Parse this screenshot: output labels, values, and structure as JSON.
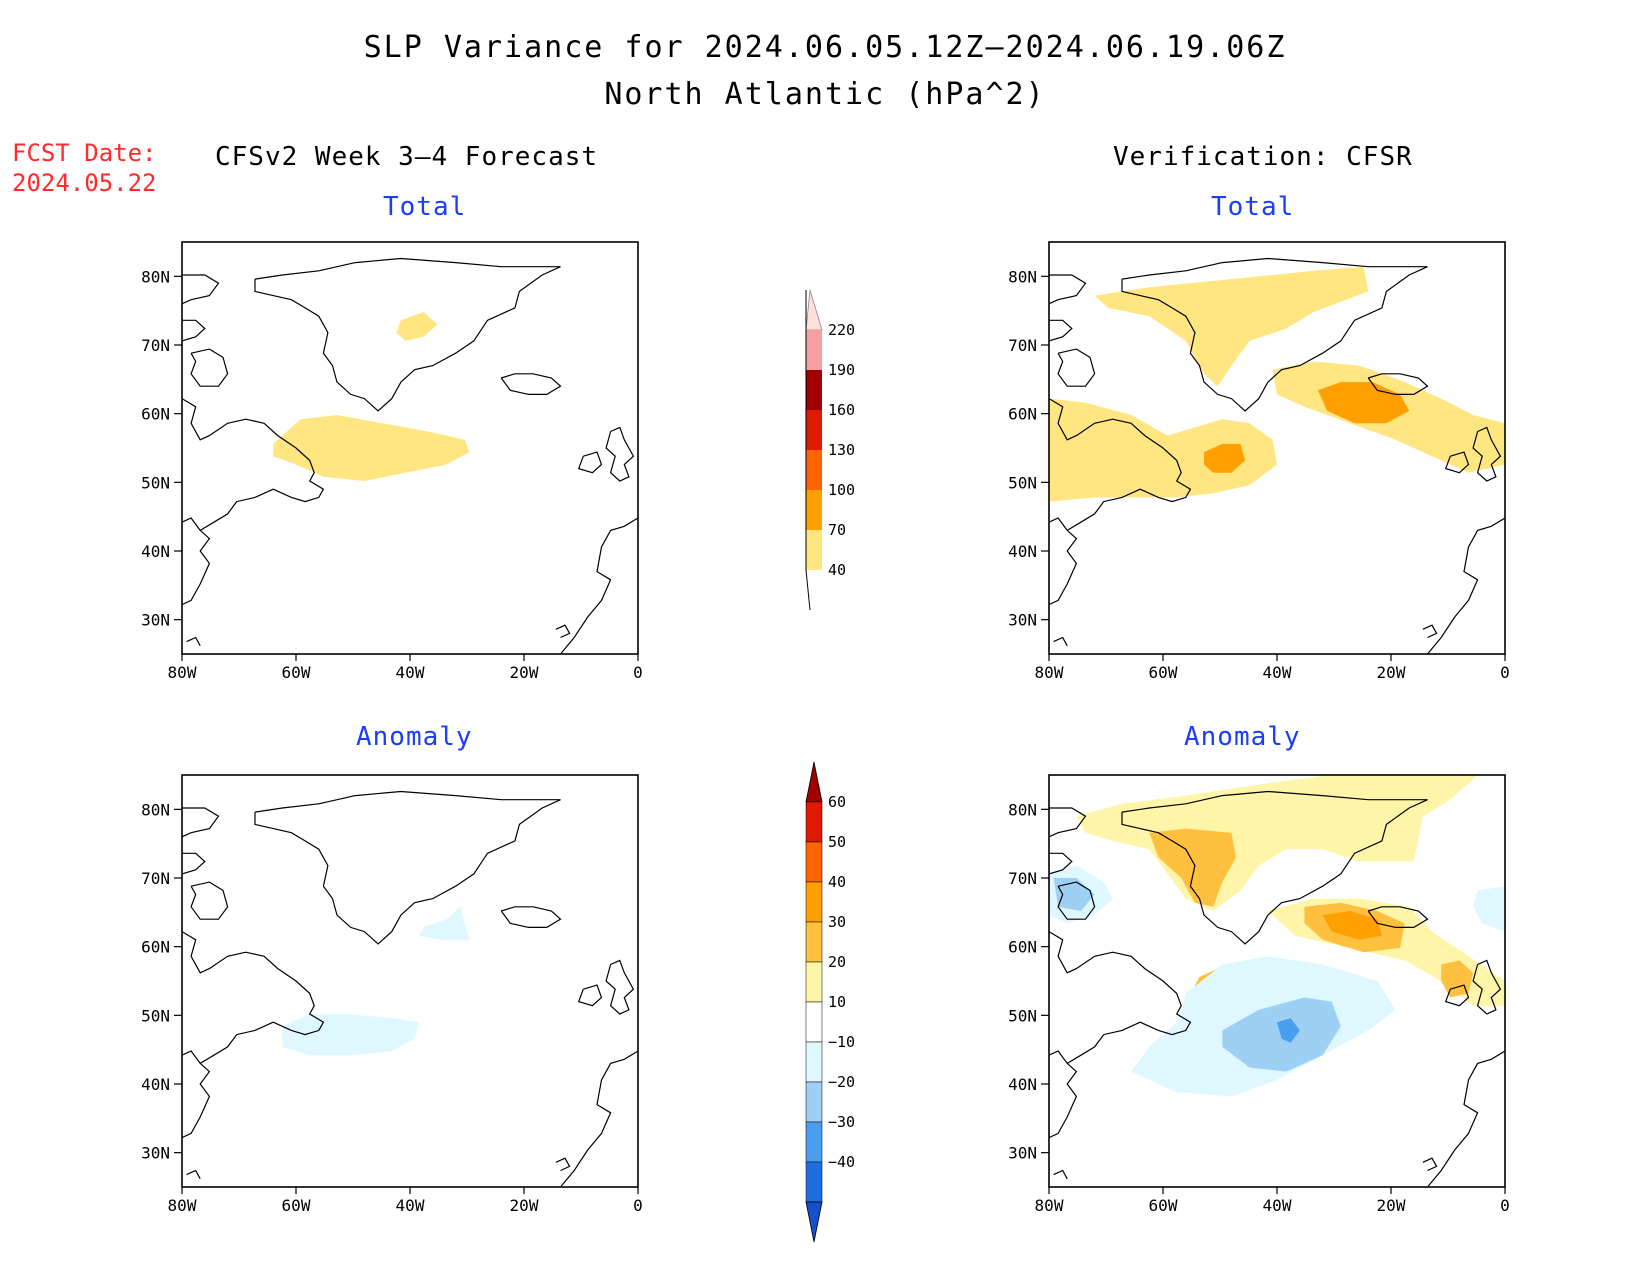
{
  "header": {
    "title_line1": "SLP Variance for 2024.06.05.12Z—2024.06.19.06Z",
    "title_line2": "North Atlantic (hPa^2)"
  },
  "forecast_date": {
    "label": "FCST Date:",
    "value": "2024.05.22"
  },
  "columns": {
    "left_title": "CFSv2 Week 3—4 Forecast",
    "right_title": "Verification: CFSR"
  },
  "panels": {
    "top_left_title": "Total",
    "top_right_title": "Total",
    "bottom_left_title": "Anomaly",
    "bottom_right_title": "Anomaly"
  },
  "axes": {
    "lat_ticks": [
      "80N",
      "70N",
      "60N",
      "50N",
      "40N",
      "30N"
    ],
    "lat_values": [
      80,
      70,
      60,
      50,
      40,
      30
    ],
    "lon_ticks": [
      "80W",
      "60W",
      "40W",
      "20W",
      "0"
    ],
    "lon_values": [
      -80,
      -60,
      -40,
      -20,
      0
    ],
    "lon_range": [
      -80,
      0
    ],
    "lat_range": [
      25,
      85
    ]
  },
  "total_colorbar": {
    "labels": [
      "220",
      "190",
      "160",
      "130",
      "100",
      "70",
      "40"
    ],
    "colors": [
      "#fde0dc",
      "#f5a0a0",
      "#a00000",
      "#e01a00",
      "#ff6400",
      "#ffa000",
      "#ffe680"
    ]
  },
  "anomaly_colorbar": {
    "labels": [
      "60",
      "50",
      "40",
      "30",
      "20",
      "10",
      "−10",
      "−20",
      "−30",
      "−40"
    ],
    "colors": [
      "#a00000",
      "#e01a00",
      "#ff6400",
      "#ffa000",
      "#ffc040",
      "#fff5a8",
      "#ffffff",
      "#dff7ff",
      "#9ed0f5",
      "#4a9ef0",
      "#1f6de0",
      "#1450c8"
    ]
  }
}
